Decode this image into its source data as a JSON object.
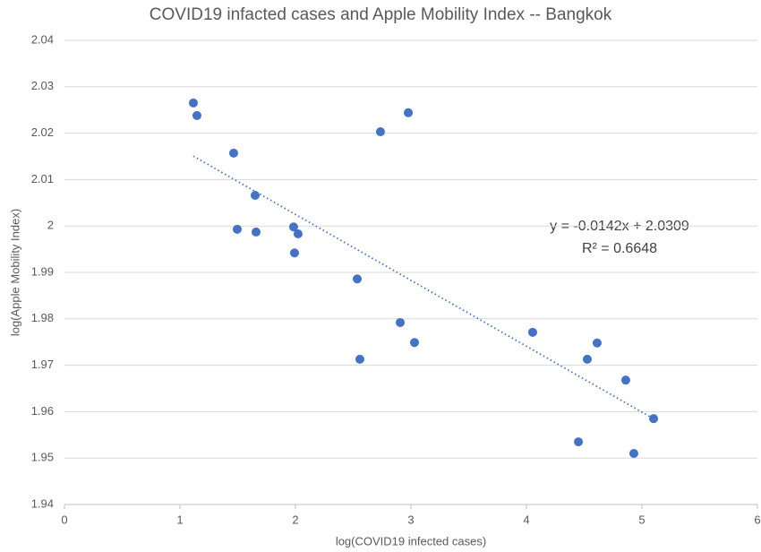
{
  "chart_data": {
    "type": "scatter",
    "title": "COVID19 infacted cases and Apple Mobility Index -- Bangkok",
    "x_label": "log(COVID19 infected cases)",
    "y_label": "log(Apple Mobility Index)",
    "color": "#4472c4",
    "x": [
      1.116,
      1.147,
      1.465,
      1.651,
      1.496,
      1.659,
      1.984,
      2.023,
      1.992,
      2.535,
      2.736,
      2.977,
      2.907,
      3.031,
      2.558,
      4.054,
      4.527,
      4.612,
      4.86,
      5.101,
      4.45,
      4.93
    ],
    "values": [
      2.0265,
      2.0238,
      2.0157,
      2.0066,
      1.9993,
      1.9987,
      1.9998,
      1.9983,
      1.9942,
      1.9886,
      2.0203,
      2.0244,
      1.9792,
      1.9749,
      1.9713,
      1.9771,
      1.9713,
      1.9748,
      1.9668,
      1.9585,
      1.9535,
      1.951
    ],
    "xlim": [
      0,
      6
    ],
    "xticks": [
      0,
      1,
      2,
      3,
      4,
      5,
      6
    ],
    "ylim": [
      1.94,
      2.04
    ],
    "yticks": [
      1.94,
      1.95,
      1.96,
      1.97,
      1.98,
      1.99,
      {
        "value": 2,
        "label": "2"
      },
      2.01,
      2.02,
      2.03,
      2.04
    ],
    "grid": true,
    "trendline": {
      "slope": -0.0142,
      "intercept": 2.0309,
      "equation": "y = -0.0142x + 2.0309",
      "r2_label": "R² = 0.6648"
    }
  }
}
